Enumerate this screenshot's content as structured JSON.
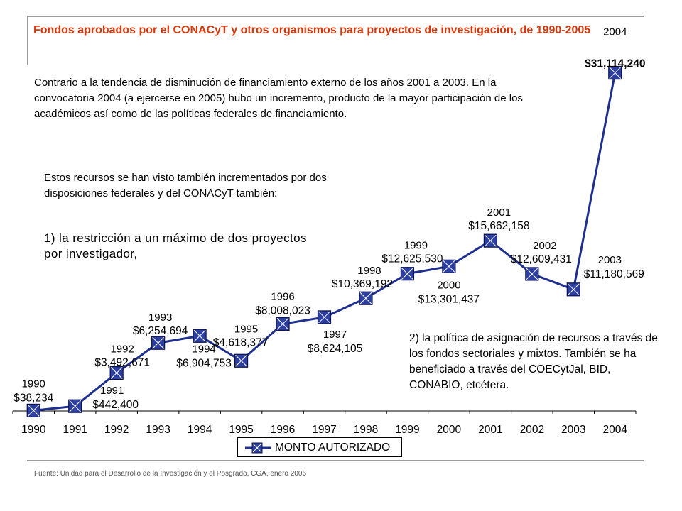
{
  "title": "Fondos aprobados por el CONACyT y otros organismos para proyectos de investigación, de 1990-2005",
  "paragraph_1": "Contrario a la tendencia de disminución de financiamiento externo de los años 2001 a 2003. En la convocatoria 2004 (a ejercerse en 2005) hubo un incremento, producto de la mayor participación de los académicos así como de las políticas federales de financiamiento.",
  "paragraph_2": "Estos recursos se han visto también incrementados por dos disposiciones federales y del CONACyT también:",
  "paragraph_3": "1) la restricción a un máximo de dos proyectos por investigador,",
  "paragraph_4": "2) la política de asignación de recursos a través de los fondos sectoriales y mixtos. También se ha beneficiado a través del COECytJal, BID, CONABIO, etcétera.",
  "source": "Fuente: Unidad para el Desarrollo de la Investigación y el Posgrado, CGA, enero 2006",
  "colors": {
    "title": "#d4380d",
    "line": "#1f2f8f",
    "marker_fill": "#2d3fa0",
    "rule": "#9a9a9a"
  },
  "chart_data": {
    "type": "line",
    "categories": [
      "1990",
      "1991",
      "1992",
      "1993",
      "1994",
      "1995",
      "1996",
      "1997",
      "1998",
      "1999",
      "2000",
      "2001",
      "2002",
      "2003",
      "2004"
    ],
    "series": [
      {
        "name": "MONTO AUTORIZADO",
        "values": [
          38234,
          442400,
          3492671,
          6254694,
          6904753,
          4618377,
          8008023,
          8624105,
          10369192,
          12625530,
          13301437,
          15662158,
          12609431,
          11180569,
          31114240
        ],
        "value_labels": [
          "$38,234",
          "$442,400",
          "$3,492,671",
          "$6,254,694",
          "$6,904,753",
          "$4,618,377",
          "$8,008,023",
          "$8,624,105",
          "$10,369,192",
          "$12,625,530",
          "$13,301,437",
          "$15,662,158",
          "$12,609,431",
          "$11,180,569",
          "$31,114,240"
        ]
      }
    ],
    "ylim": [
      0,
      32000000
    ],
    "grid": false,
    "legend": "bottom"
  }
}
